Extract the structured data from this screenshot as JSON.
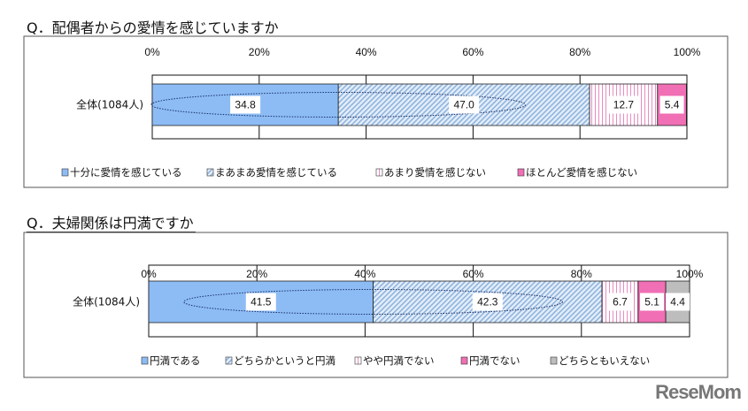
{
  "chart_data": [
    {
      "type": "bar",
      "orientation": "horizontal-stacked",
      "title": "Q．配偶者からの愛情を感じていますか",
      "categories": [
        "全体(1084人)"
      ],
      "xlim": [
        0,
        100
      ],
      "ticks": [
        "0%",
        "20%",
        "40%",
        "60%",
        "80%",
        "100%"
      ],
      "series": [
        {
          "name": "十分に愛情を感じている",
          "values": [
            34.8
          ],
          "color": "#8dbcf5",
          "pattern": "solid"
        },
        {
          "name": "まあまあ愛情を感じている",
          "values": [
            47.0
          ],
          "color": "#b9d3ee",
          "pattern": "diagonal"
        },
        {
          "name": "あまり愛情を感じない",
          "values": [
            12.7
          ],
          "color": "#f2a6d0",
          "pattern": "vertical"
        },
        {
          "name": "ほとんど愛情を感じない",
          "values": [
            5.4
          ],
          "color": "#f06fb5",
          "pattern": "solid"
        }
      ],
      "labels": [
        "34.8",
        "47.0",
        "12.7",
        "5.4"
      ],
      "legend": "bottom",
      "grid": true
    },
    {
      "type": "bar",
      "orientation": "horizontal-stacked",
      "title": "Q．夫婦関係は円満ですか",
      "categories": [
        "全体(1084人)"
      ],
      "xlim": [
        0,
        100
      ],
      "ticks": [
        "0%",
        "20%",
        "40%",
        "60%",
        "80%",
        "100%"
      ],
      "series": [
        {
          "name": "円満である",
          "values": [
            41.5
          ],
          "color": "#8dbcf5",
          "pattern": "solid"
        },
        {
          "name": "どちらかというと円満",
          "values": [
            42.3
          ],
          "color": "#b9d3ee",
          "pattern": "diagonal"
        },
        {
          "name": "やや円満でない",
          "values": [
            6.7
          ],
          "color": "#f2a6d0",
          "pattern": "vertical"
        },
        {
          "name": "円満でない",
          "values": [
            5.1
          ],
          "color": "#f06fb5",
          "pattern": "solid"
        },
        {
          "name": "どちらともいえない",
          "values": [
            4.4
          ],
          "color": "#bdbdbd",
          "pattern": "solid"
        }
      ],
      "labels": [
        "41.5",
        "42.3",
        "6.7",
        "5.1",
        "4.4"
      ],
      "legend": "bottom",
      "grid": true
    }
  ],
  "logo": "ReseMom"
}
